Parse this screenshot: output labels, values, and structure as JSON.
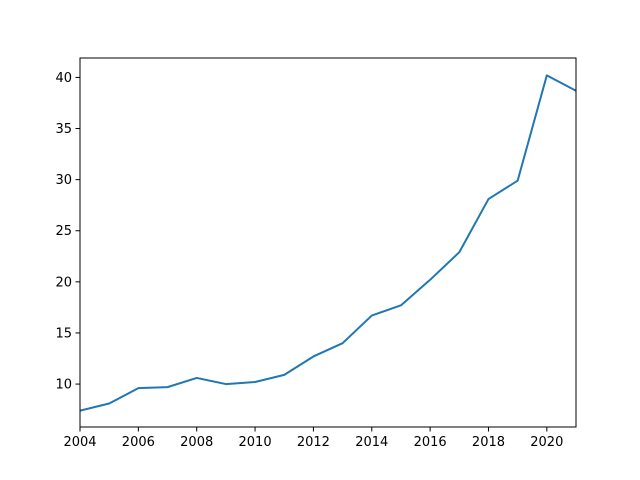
{
  "chart_data": {
    "type": "line",
    "title": "",
    "xlabel": "",
    "ylabel": "",
    "x": [
      2004,
      2005,
      2006,
      2007,
      2008,
      2009,
      2010,
      2011,
      2012,
      2013,
      2014,
      2015,
      2016,
      2017,
      2018,
      2019,
      2020,
      2021
    ],
    "series": [
      {
        "values": [
          7.4,
          8.1,
          9.6,
          9.7,
          10.6,
          10.0,
          10.2,
          10.9,
          12.7,
          14.0,
          16.7,
          17.7,
          20.2,
          22.9,
          28.1,
          29.9,
          40.2,
          38.7
        ],
        "color": "#1f77b4"
      }
    ],
    "xlim": [
      2004,
      2021
    ],
    "ylim": [
      5.8,
      41.9
    ],
    "xticks": [
      "2004",
      "2006",
      "2008",
      "2010",
      "2012",
      "2014",
      "2016",
      "2018",
      "2020"
    ],
    "yticks": [
      "10",
      "15",
      "20",
      "25",
      "30",
      "35",
      "40"
    ],
    "grid": false,
    "legend": "none"
  }
}
